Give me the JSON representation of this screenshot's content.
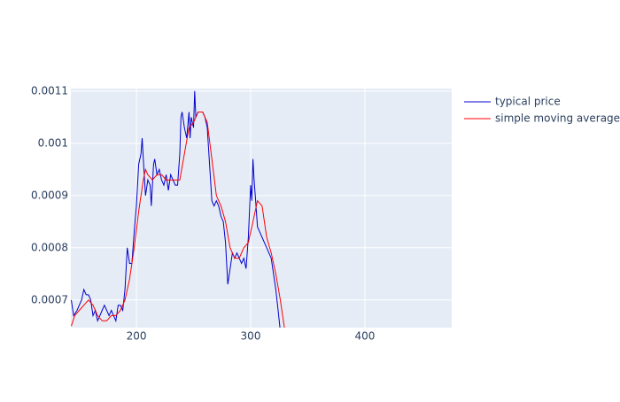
{
  "chart_data": {
    "type": "line",
    "series": [
      {
        "name": "typical price",
        "color": "#0000cc",
        "x": [
          143,
          145,
          148,
          150,
          152,
          154,
          156,
          158,
          160,
          162,
          164,
          166,
          168,
          170,
          172,
          174,
          176,
          178,
          180,
          182,
          184,
          186,
          188,
          190,
          192,
          194,
          196,
          198,
          200,
          202,
          204,
          205,
          206,
          208,
          210,
          212,
          213,
          215,
          216,
          218,
          220,
          222,
          224,
          226,
          228,
          230,
          232,
          234,
          236,
          238,
          239,
          240,
          242,
          244,
          246,
          247,
          248,
          250,
          251,
          252,
          254,
          256,
          258,
          260,
          262,
          264,
          266,
          268,
          270,
          272,
          274,
          276,
          278,
          280,
          282,
          284,
          286,
          288,
          290,
          292,
          294,
          296,
          298,
          300,
          301,
          302,
          303,
          304,
          306,
          308,
          310,
          312,
          314,
          316,
          318,
          320,
          322,
          324,
          326
        ],
        "values": [
          0.0007,
          0.00067,
          0.00068,
          0.00069,
          0.0007,
          0.00072,
          0.00071,
          0.00071,
          0.0007,
          0.00067,
          0.00068,
          0.00066,
          0.00067,
          0.00068,
          0.00069,
          0.00068,
          0.00067,
          0.00068,
          0.00067,
          0.00066,
          0.00069,
          0.00069,
          0.00068,
          0.00072,
          0.0008,
          0.00077,
          0.00077,
          0.00083,
          0.00088,
          0.00096,
          0.00098,
          0.00101,
          0.00097,
          0.0009,
          0.00093,
          0.00092,
          0.00088,
          0.00096,
          0.00097,
          0.00094,
          0.00095,
          0.00093,
          0.00092,
          0.00094,
          0.00091,
          0.00094,
          0.00093,
          0.00092,
          0.00092,
          0.00098,
          0.00105,
          0.00106,
          0.00103,
          0.00101,
          0.00106,
          0.00101,
          0.00105,
          0.00103,
          0.0011,
          0.00105,
          0.00106,
          0.00106,
          0.00106,
          0.00105,
          0.00103,
          0.00096,
          0.00089,
          0.00088,
          0.00089,
          0.00088,
          0.00086,
          0.00085,
          0.00081,
          0.00073,
          0.00076,
          0.00079,
          0.00078,
          0.00079,
          0.00078,
          0.00077,
          0.00078,
          0.00076,
          0.00082,
          0.00092,
          0.00089,
          0.00097,
          0.00093,
          0.0009,
          0.00084,
          0.00083,
          0.00082,
          0.00081,
          0.0008,
          0.00079,
          0.00078,
          0.00075,
          0.00072,
          0.00068,
          0.00064
        ]
      },
      {
        "name": "simple moving average",
        "color": "#ff0000",
        "x": [
          143,
          146,
          150,
          154,
          158,
          162,
          166,
          170,
          174,
          178,
          182,
          186,
          190,
          194,
          198,
          202,
          206,
          208,
          210,
          214,
          218,
          222,
          226,
          230,
          234,
          238,
          242,
          246,
          250,
          254,
          258,
          262,
          266,
          270,
          274,
          278,
          282,
          286,
          290,
          294,
          298,
          302,
          306,
          310,
          314,
          318,
          322,
          326,
          330
        ],
        "values": [
          0.00065,
          0.00067,
          0.00068,
          0.00069,
          0.0007,
          0.00069,
          0.00067,
          0.00066,
          0.00066,
          0.00067,
          0.00067,
          0.00068,
          0.0007,
          0.00074,
          0.0008,
          0.00087,
          0.00093,
          0.00095,
          0.00094,
          0.00093,
          0.00094,
          0.00094,
          0.00093,
          0.00093,
          0.00093,
          0.00093,
          0.00098,
          0.00103,
          0.00104,
          0.00106,
          0.00106,
          0.00104,
          0.00097,
          0.0009,
          0.00088,
          0.00085,
          0.0008,
          0.00078,
          0.00078,
          0.0008,
          0.00081,
          0.00085,
          0.00089,
          0.00088,
          0.00082,
          0.00079,
          0.00075,
          0.0007,
          0.00064
        ]
      }
    ],
    "xlim": [
      142.6,
      476
    ],
    "xticks": [
      200,
      300,
      400
    ],
    "ylim": [
      0.000647,
      0.001105
    ],
    "yticks": [
      0.0007,
      0.0008,
      0.0009,
      0.001,
      0.0011
    ],
    "grid": true,
    "legend": "right",
    "background": "#e5ecf6"
  }
}
